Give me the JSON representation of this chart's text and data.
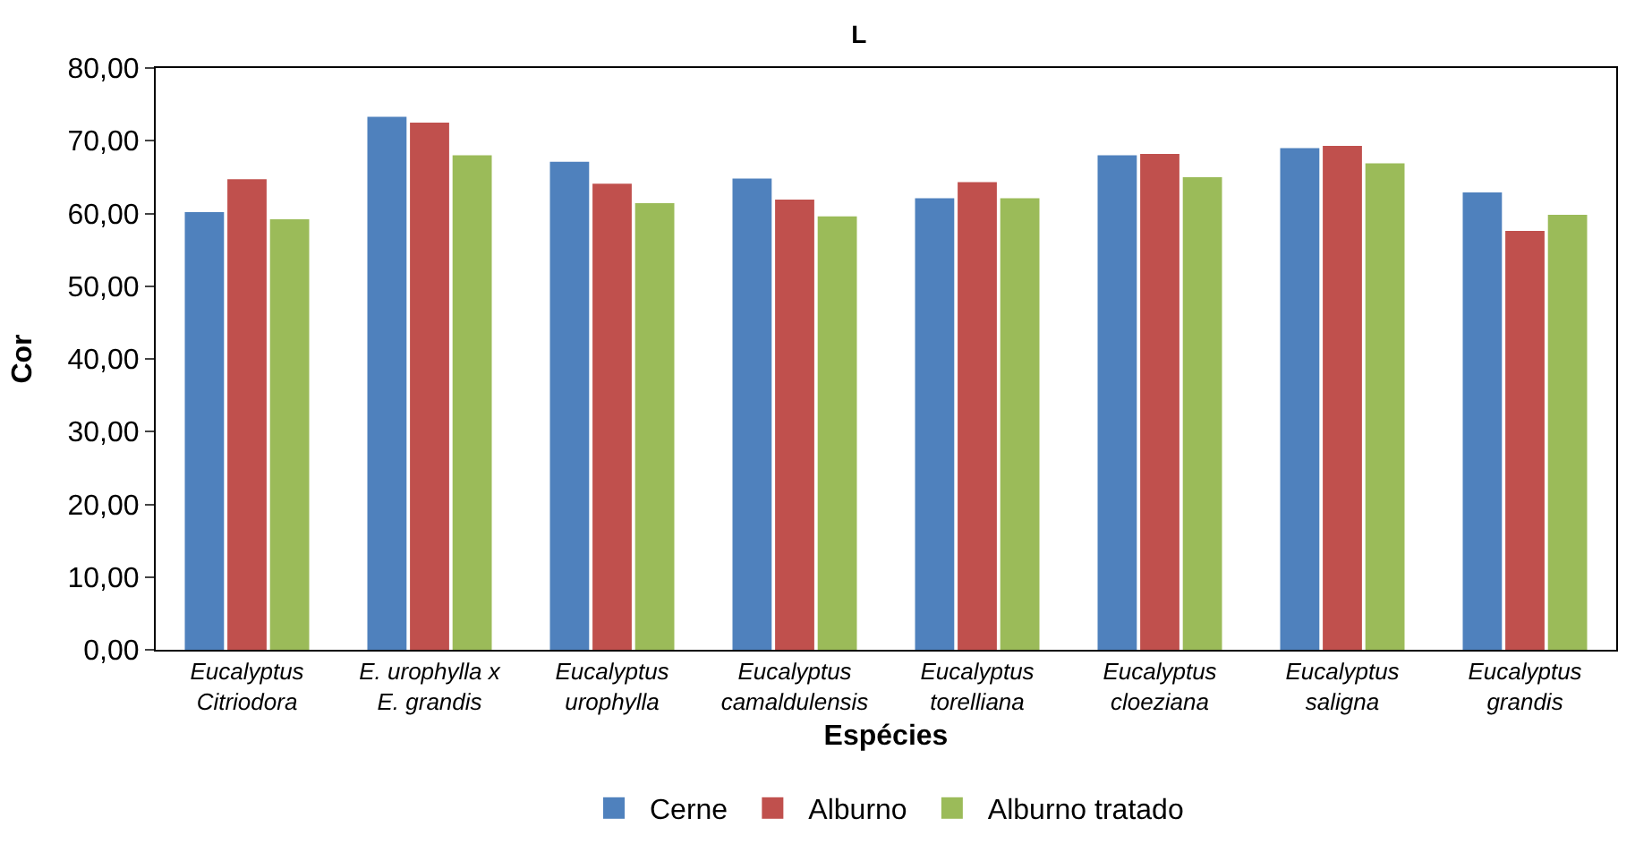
{
  "chart_data": {
    "type": "bar",
    "title": "L",
    "xlabel": "Espécies",
    "ylabel": "Cor",
    "categories": [
      "Eucalyptus Citriodora",
      "E. urophylla x E. grandis",
      "Eucalyptus urophylla",
      "Eucalyptus camaldulensis",
      "Eucalyptus torelliana",
      "Eucalyptus cloeziana",
      "Eucalyptus saligna",
      "Eucalyptus grandis"
    ],
    "series": [
      {
        "name": "Cerne",
        "color": "#4f81bd",
        "values": [
          60.2,
          73.3,
          67.1,
          64.8,
          62.1,
          68.0,
          69.0,
          62.9
        ]
      },
      {
        "name": "Alburno",
        "color": "#c0504d",
        "values": [
          64.7,
          72.5,
          64.1,
          61.9,
          64.3,
          68.2,
          69.3,
          57.6
        ]
      },
      {
        "name": "Alburno tratado",
        "color": "#9bbb59",
        "values": [
          59.2,
          68.0,
          61.4,
          59.6,
          62.1,
          65.0,
          66.9,
          59.8
        ]
      }
    ],
    "ylim": [
      0,
      80
    ],
    "yticks": [
      {
        "value": 0,
        "label": "0,00"
      },
      {
        "value": 10,
        "label": "10,00"
      },
      {
        "value": 20,
        "label": "20,00"
      },
      {
        "value": 30,
        "label": "30,00"
      },
      {
        "value": 40,
        "label": "40,00"
      },
      {
        "value": 50,
        "label": "50,00"
      },
      {
        "value": 60,
        "label": "60,00"
      },
      {
        "value": 70,
        "label": "70,00"
      },
      {
        "value": 80,
        "label": "80,00"
      }
    ],
    "legend": "bottom"
  }
}
